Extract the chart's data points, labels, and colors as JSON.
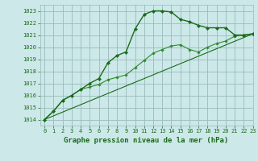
{
  "title": "Graphe pression niveau de la mer (hPa)",
  "bg_color": "#cce8e8",
  "grid_color": "#99bbbb",
  "line_color": "#1a6b1a",
  "line_color2": "#2d8b2d",
  "ylim": [
    1013.5,
    1023.5
  ],
  "xlim": [
    -0.5,
    23
  ],
  "yticks": [
    1014,
    1015,
    1016,
    1017,
    1018,
    1019,
    1020,
    1021,
    1022,
    1023
  ],
  "xticks": [
    0,
    1,
    2,
    3,
    4,
    5,
    6,
    7,
    8,
    9,
    10,
    11,
    12,
    13,
    14,
    15,
    16,
    17,
    18,
    19,
    20,
    21,
    22,
    23
  ],
  "series1": [
    1014.0,
    1014.7,
    1015.6,
    1016.0,
    1016.5,
    1017.0,
    1017.4,
    1018.7,
    1019.3,
    1019.6,
    1021.5,
    1022.7,
    1023.0,
    1023.0,
    1022.9,
    1022.3,
    1022.1,
    1021.8,
    1021.6,
    1021.6,
    1021.6,
    1021.0,
    1021.0,
    1021.1
  ],
  "series2": [
    1014.0,
    1014.7,
    1015.6,
    1016.0,
    1016.5,
    1016.7,
    1016.9,
    1017.3,
    1017.5,
    1017.7,
    1018.3,
    1018.9,
    1019.5,
    1019.8,
    1020.1,
    1020.2,
    1019.8,
    1019.6,
    1020.0,
    1020.3,
    1020.5,
    1020.9,
    1021.0,
    1021.1
  ],
  "series3_x": [
    0,
    23
  ],
  "series3_y": [
    1014.0,
    1021.1
  ],
  "title_fontsize": 6.5,
  "tick_fontsize": 5.0
}
